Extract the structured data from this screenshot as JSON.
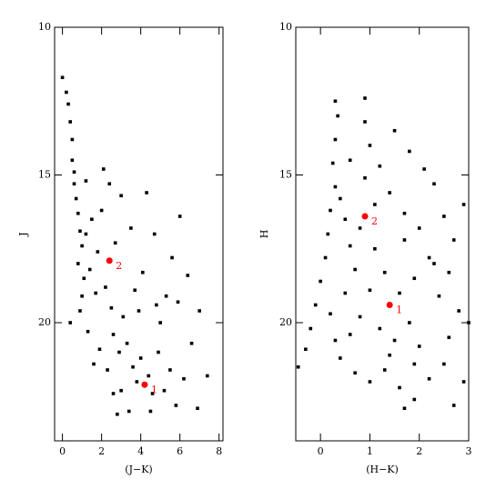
{
  "chart_data": [
    {
      "type": "scatter",
      "xlabel": "(J−K)",
      "ylabel": "J",
      "xlim": [
        -0.4,
        8.2
      ],
      "ylim": [
        24,
        10
      ],
      "xticks": [
        0,
        2,
        4,
        6,
        8
      ],
      "yticks": [
        10,
        15,
        20
      ],
      "series": [
        {
          "color": "#000000",
          "x": [
            0.0,
            0.2,
            0.3,
            0.4,
            0.5,
            0.5,
            0.6,
            0.6,
            0.7,
            0.8,
            0.9,
            1.0,
            0.8,
            1.1,
            1.0,
            0.9,
            0.4,
            1.3,
            1.2,
            1.5,
            1.4,
            1.7,
            1.8,
            2.0,
            2.2,
            2.5,
            2.6,
            2.9,
            3.1,
            3.3,
            3.6,
            3.8,
            4.0,
            4.4,
            4.6,
            4.9,
            5.2,
            5.5,
            5.8,
            6.2,
            6.6,
            7.0,
            6.4,
            5.9,
            5.6,
            4.7,
            4.1,
            3.5,
            3.0,
            2.4,
            2.7,
            1.9,
            2.3,
            3.0,
            3.4,
            2.8,
            4.5,
            5.0,
            3.9,
            1.6,
            6.9,
            7.4,
            6.0,
            4.3,
            1.2,
            2.1,
            3.7,
            5.3,
            2.6,
            4.8
          ],
          "values": [
            11.7,
            12.2,
            12.6,
            13.2,
            13.8,
            14.5,
            14.9,
            15.3,
            15.8,
            16.3,
            16.9,
            17.4,
            18.0,
            18.5,
            19.1,
            19.6,
            20.0,
            20.3,
            17.0,
            16.5,
            18.2,
            19.0,
            17.6,
            16.2,
            18.8,
            19.5,
            20.4,
            21.0,
            19.8,
            20.7,
            21.5,
            22.0,
            21.2,
            21.8,
            22.4,
            21.0,
            22.3,
            21.6,
            22.8,
            21.9,
            20.7,
            19.6,
            18.4,
            19.3,
            17.8,
            17.0,
            18.3,
            16.8,
            15.7,
            15.3,
            17.3,
            20.9,
            21.6,
            22.3,
            23.0,
            23.1,
            23.0,
            20.0,
            19.6,
            21.4,
            22.9,
            21.8,
            16.4,
            15.6,
            15.2,
            14.8,
            18.9,
            19.1,
            22.4,
            19.4
          ]
        },
        {
          "color": "#ff0000",
          "x": [
            4.2,
            2.4
          ],
          "values": [
            22.1,
            17.9
          ],
          "point_labels": [
            "1",
            "2"
          ]
        }
      ]
    },
    {
      "type": "scatter",
      "xlabel": "(H−K)",
      "ylabel": "H",
      "xlim": [
        -0.5,
        3.0
      ],
      "ylim": [
        24,
        10
      ],
      "xticks": [
        0,
        1,
        2,
        3
      ],
      "yticks": [
        10,
        15,
        20
      ],
      "series": [
        {
          "color": "#000000",
          "x": [
            0.3,
            0.35,
            0.3,
            0.25,
            0.3,
            0.2,
            0.15,
            0.1,
            0.0,
            -0.1,
            -0.2,
            -0.3,
            -0.45,
            0.9,
            0.9,
            1.0,
            1.2,
            1.5,
            1.8,
            2.1,
            1.4,
            1.7,
            2.3,
            2.5,
            2.9,
            2.7,
            2.2,
            1.9,
            2.4,
            2.8,
            2.6,
            3.0,
            2.5,
            2.9,
            2.7,
            2.2,
            1.9,
            1.6,
            1.3,
            1.0,
            0.7,
            0.4,
            0.6,
            0.8,
            0.5,
            0.7,
            0.6,
            0.5,
            0.8,
            1.1,
            1.3,
            1.6,
            1.8,
            1.5,
            1.2,
            1.0,
            2.0,
            2.3,
            1.1,
            0.6,
            0.4,
            0.9,
            1.7,
            2.0,
            1.4,
            0.3,
            1.9,
            2.6,
            0.2,
            1.7
          ],
          "values": [
            12.5,
            13.0,
            13.8,
            14.6,
            15.4,
            16.2,
            17.0,
            17.8,
            18.6,
            19.4,
            20.2,
            20.9,
            21.5,
            12.4,
            13.2,
            14.0,
            14.7,
            13.5,
            14.2,
            14.8,
            15.6,
            16.3,
            15.3,
            16.4,
            16.0,
            17.2,
            17.8,
            18.5,
            19.1,
            19.6,
            20.5,
            20.0,
            21.4,
            22.0,
            22.8,
            21.9,
            22.6,
            22.2,
            21.6,
            22.0,
            21.7,
            21.2,
            20.4,
            19.8,
            19.0,
            18.2,
            17.4,
            16.5,
            16.8,
            17.5,
            18.3,
            19.0,
            20.0,
            20.6,
            20.2,
            18.9,
            20.8,
            18.0,
            16.0,
            14.5,
            15.8,
            15.1,
            17.2,
            16.8,
            21.1,
            20.6,
            21.4,
            18.3,
            19.7,
            22.9
          ]
        },
        {
          "color": "#ff0000",
          "x": [
            1.4,
            0.9
          ],
          "values": [
            19.4,
            16.4
          ],
          "point_labels": [
            "1",
            "2"
          ]
        }
      ]
    }
  ]
}
